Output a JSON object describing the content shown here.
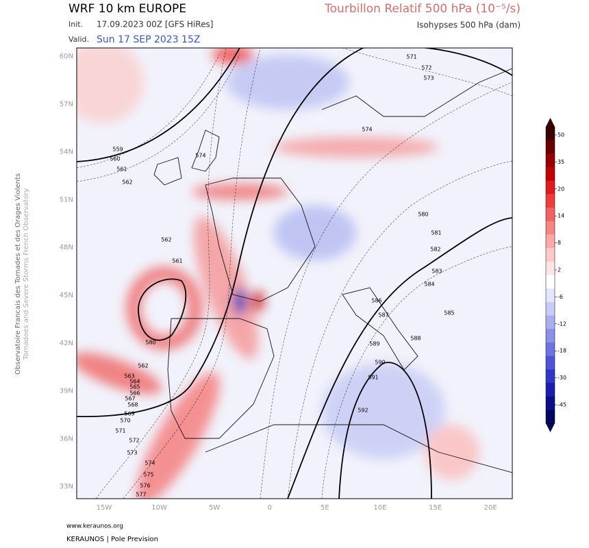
{
  "header": {
    "title": "WRF 10 km EUROPE",
    "init_label": "Init.",
    "init": "17.09.2023 00Z [GFS HiRes]",
    "valid_label": "Valid.",
    "valid": "Sun 17 SEP 2023 15Z",
    "field": "Tourbillon Relatif 500 hPa (10⁻⁵/s)",
    "contours": "Isohypses 500 hPa (dam)"
  },
  "map": {
    "lat_labels": [
      "60N",
      "57N",
      "54N",
      "51N",
      "48N",
      "45N",
      "42N",
      "39N",
      "36N",
      "33N"
    ],
    "lon_labels": [
      "15W",
      "10W",
      "5W",
      "0",
      "5E",
      "10E",
      "15E",
      "20E"
    ],
    "contour_labels": [
      559,
      560,
      561,
      562,
      562,
      561,
      580,
      562,
      563,
      564,
      565,
      566,
      567,
      568,
      569,
      570,
      571,
      572,
      573,
      574,
      575,
      576,
      577,
      580,
      581,
      582,
      583,
      584,
      585,
      586,
      587,
      588,
      589,
      590,
      591,
      592,
      571,
      572,
      573,
      574,
      574
    ]
  },
  "colorbar": {
    "ticks": [
      50,
      35,
      20,
      14,
      8,
      2,
      -6,
      -12,
      -18,
      -30,
      -45
    ],
    "colors": [
      "#3d0000",
      "#6b0000",
      "#9a0000",
      "#c40000",
      "#e31a1a",
      "#f03c3c",
      "#f56060",
      "#f88484",
      "#fba8a8",
      "#fdcaca",
      "#ffe4e4",
      "#ffffff",
      "#e4e6fb",
      "#c8ccf6",
      "#a8aef0",
      "#8a90ea",
      "#6c72e2",
      "#4e54da",
      "#3036cc",
      "#1a1eb0",
      "#0b0e88",
      "#050660"
    ]
  },
  "side": {
    "line1": "Observatoire Francais des Tornades et des Orages Violents",
    "line2": "Tornadoes and Severe Storms French Observatory"
  },
  "footer": {
    "site": "www.keraunos.org",
    "credit": "KERAUNOS | Pole Prevision"
  }
}
